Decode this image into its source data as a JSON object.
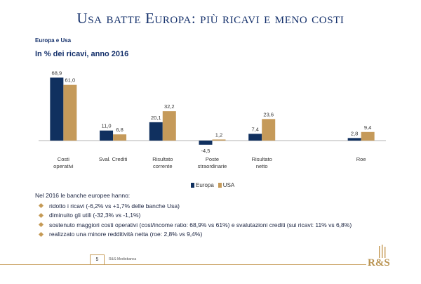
{
  "title": "Usa batte Europa: più ricavi e meno costi",
  "subtitle1": "Europa e Usa",
  "subtitle2": "In % dei ricavi, anno 2016",
  "colors": {
    "europa": "#10305f",
    "usa": "#c59a5a",
    "gold": "#c59a55"
  },
  "chart_data": {
    "type": "bar",
    "categories": [
      [
        "Costi",
        "operativi"
      ],
      [
        "Sval. Crediti"
      ],
      [
        "Risultato",
        "corrente"
      ],
      [
        "Poste",
        "straordinarie"
      ],
      [
        "Risultato",
        "netto"
      ],
      [],
      [
        "Roe"
      ]
    ],
    "series": [
      {
        "name": "Europa",
        "values": [
          68.9,
          11.0,
          20.1,
          -4.5,
          7.4,
          null,
          2.8
        ],
        "labels": [
          "68,9",
          "11,0",
          "20,1",
          "-4,5",
          "7,4",
          "",
          "2,8"
        ]
      },
      {
        "name": "USA",
        "values": [
          61.0,
          6.8,
          32.2,
          1.2,
          23.6,
          null,
          9.4
        ],
        "labels": [
          "61,0",
          "6,8",
          "32,2",
          "1,2",
          "23,6",
          "",
          "9,4"
        ]
      }
    ],
    "ylim": [
      -5,
      70
    ],
    "grid": false,
    "legend": "bottom-center"
  },
  "legend": {
    "europa": "Europa",
    "usa": "USA"
  },
  "notes": {
    "intro": "Nel 2016 le banche europee hanno:",
    "bullets": [
      "ridotto i ricavi (-6,2% vs +1,7% delle banche Usa)",
      "diminuito gli utili (-32,3% vs -1,1%)",
      "sostenuto maggiori costi operativi (cost/income ratio: 68,9% vs 61%) e svalutazioni crediti (sui ricavi: 11% vs 6,8%)",
      "realizzato una minore redditività netta (roe: 2,8% vs 9,4%)"
    ]
  },
  "footer": {
    "page": "5",
    "source": "R&S-Mediobanca"
  },
  "logo": {
    "text": "R&S"
  }
}
